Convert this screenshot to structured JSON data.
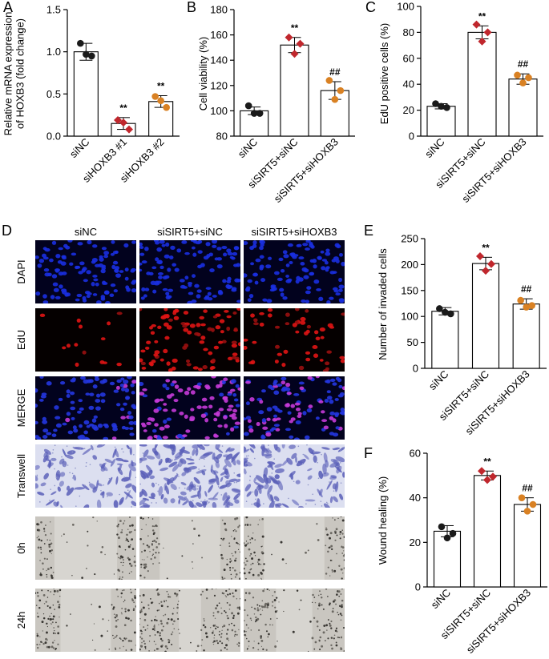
{
  "panel_labels": {
    "A": "A",
    "B": "B",
    "C": "C",
    "D": "D",
    "E": "E",
    "F": "F"
  },
  "colors": {
    "siNC": "#1a1a1a",
    "siSIRT5+siNC": "#c0272d",
    "siSIRT5+siHOXB3": "#d98123",
    "siHOXB3 #1": "#c0272d",
    "siHOXB3 #2": "#d98123"
  },
  "chart_data": [
    {
      "panel": "A",
      "type": "bar",
      "categories": [
        "siNC",
        "siHOXB3 #1",
        "siHOXB3 #2"
      ],
      "values": [
        1.0,
        0.15,
        0.41
      ],
      "errors": [
        0.1,
        0.07,
        0.07
      ],
      "points": [
        [
          1.1,
          0.95,
          0.97
        ],
        [
          0.19,
          0.08,
          0.16
        ],
        [
          0.47,
          0.34,
          0.42
        ]
      ],
      "annotations": [
        "",
        "**",
        "**"
      ],
      "ylabel_lines": [
        "Relative mRNA expression",
        "of HOXB3 (fold change)"
      ],
      "ylim": [
        0,
        1.5
      ],
      "yticks": [
        "0.0",
        "0.5",
        "1.0",
        "1.5"
      ]
    },
    {
      "panel": "B",
      "type": "bar",
      "categories": [
        "siNC",
        "siSIRT5+siNC",
        "siSIRT5+siHOXB3"
      ],
      "values": [
        100,
        152,
        116
      ],
      "errors": [
        3,
        6,
        7
      ],
      "points": [
        [
          104,
          98,
          98
        ],
        [
          158,
          153,
          145
        ],
        [
          124,
          116,
          109
        ]
      ],
      "annotations": [
        "",
        "**",
        "##"
      ],
      "ylabel_lines": [
        "Cell viability (%)"
      ],
      "ylim": [
        80,
        180
      ],
      "yticks": [
        "80",
        "100",
        "120",
        "140",
        "160",
        "180"
      ]
    },
    {
      "panel": "C",
      "type": "bar",
      "categories": [
        "siNC",
        "siSIRT5+siNC",
        "siSIRT5+siHOXB3"
      ],
      "values": [
        23,
        80,
        44
      ],
      "errors": [
        2,
        5,
        4
      ],
      "points": [
        [
          25,
          22,
          23
        ],
        [
          86,
          80,
          73
        ],
        [
          47,
          45,
          41
        ]
      ],
      "annotations": [
        "",
        "**",
        "##"
      ],
      "ylabel_lines": [
        "EdU positive cells (%)"
      ],
      "ylim": [
        0,
        100
      ],
      "yticks": [
        "0",
        "20",
        "40",
        "60",
        "80",
        "100"
      ]
    },
    {
      "panel": "E",
      "type": "bar",
      "categories": [
        "siNC",
        "siSIRT5+siNC",
        "siSIRT5+siHOXB3"
      ],
      "values": [
        110,
        202,
        124
      ],
      "errors": [
        7,
        12,
        10
      ],
      "points": [
        [
          115,
          105,
          108
        ],
        [
          216,
          201,
          188
        ],
        [
          131,
          121,
          118
        ]
      ],
      "annotations": [
        "",
        "**",
        "##"
      ],
      "ylabel_lines": [
        "Number of invaded cells"
      ],
      "ylim": [
        0,
        250
      ],
      "yticks": [
        "0",
        "50",
        "100",
        "150",
        "200",
        "250"
      ]
    },
    {
      "panel": "F",
      "type": "bar",
      "categories": [
        "siNC",
        "siSIRT5+siNC",
        "siSIRT5+siHOXB3"
      ],
      "values": [
        25,
        50,
        37
      ],
      "errors": [
        2.5,
        2,
        3
      ],
      "points": [
        [
          27,
          24,
          22
        ],
        [
          52,
          49.5,
          48
        ],
        [
          40,
          37,
          34
        ]
      ],
      "annotations": [
        "",
        "**",
        "##"
      ],
      "ylabel_lines": [
        "Wound healing (%)"
      ],
      "ylim": [
        0,
        60
      ],
      "yticks": [
        "0",
        "20",
        "40",
        "60"
      ]
    }
  ],
  "image_grid": {
    "column_headers": [
      "siNC",
      "siSIRT5+siNC",
      "siSIRT5+siHOXB3"
    ],
    "row_labels": [
      "DAPI",
      "EdU",
      "MERGE",
      "Transwell",
      "0h",
      "24h"
    ],
    "row_styles": [
      "dapi",
      "edu",
      "merge",
      "transwell",
      "wound",
      "wound"
    ],
    "edu_density": [
      0.15,
      1.0,
      0.55
    ],
    "merge_density": [
      0.15,
      1.0,
      0.55
    ],
    "transwell_density": [
      0.55,
      1.0,
      0.7
    ],
    "wound_gap": [
      [
        0.62,
        0.6,
        0.6
      ],
      [
        0.5,
        0.22,
        0.36
      ]
    ]
  }
}
